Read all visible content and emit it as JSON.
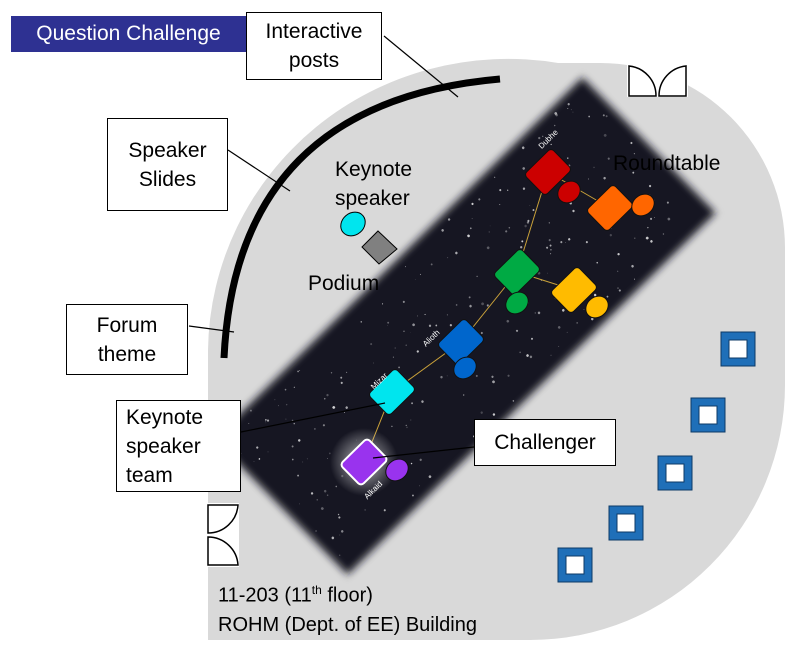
{
  "title": "Question Challenge",
  "callouts": {
    "interactive_posts": "Interactive\nposts",
    "speaker_slides": "Speaker\nSlides",
    "forum_theme": "Forum\ntheme",
    "keynote_speaker_team": "Keynote\nspeaker\nteam",
    "challenger": "Challenger"
  },
  "labels": {
    "keynote_speaker": "Keynote\nspeaker",
    "podium": "Podium",
    "roundtable": "Roundtable"
  },
  "tables": [
    {
      "name": "Dubhe",
      "color": "#cc0000"
    },
    {
      "name": "",
      "color": "#ff6600"
    },
    {
      "name": "",
      "color": "#00aa44"
    },
    {
      "name": "",
      "color": "#ffbb00"
    },
    {
      "name": "Alioth",
      "color": "#0066cc"
    },
    {
      "name": "Mizar",
      "color": "#00e5ee"
    },
    {
      "name": "Alkaid",
      "color": "#9933ee"
    }
  ],
  "room": {
    "number": "11-203",
    "floor_open": "(11",
    "floor_sup": "th",
    "floor_close": " floor)",
    "building": "ROHM (Dept. of EE) Building"
  },
  "colors": {
    "floor": "#d9d9d9",
    "banner": "#2e3192",
    "seat_frame": "#1f6fb8",
    "starfield": "#141820"
  },
  "icons": [
    "door-icon",
    "seat-icon",
    "podium-icon"
  ]
}
